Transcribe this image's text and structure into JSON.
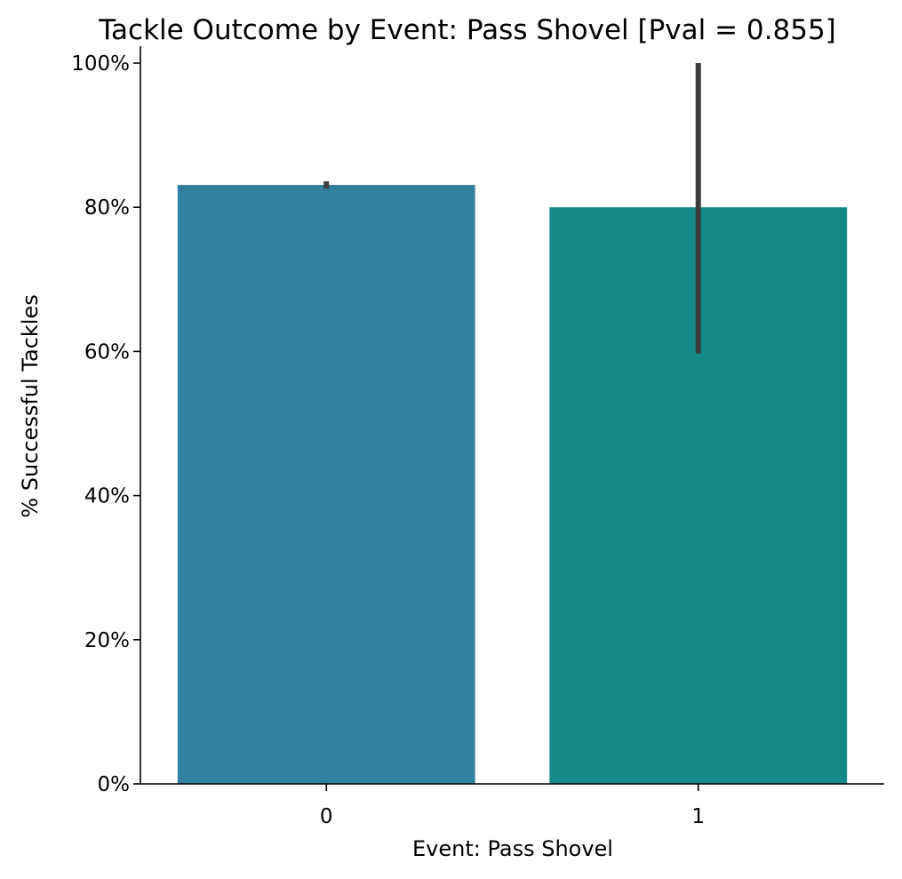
{
  "chart_data": {
    "type": "bar",
    "title": "Tackle Outcome by Event: Pass Shovel [Pval = 0.855]",
    "xlabel": "Event: Pass Shovel",
    "ylabel": "% Successful Tackles",
    "categories": [
      "0",
      "1"
    ],
    "values": [
      0.831,
      0.8
    ],
    "error_bars": [
      [
        0.826,
        0.836
      ],
      [
        0.597,
        1.0
      ]
    ],
    "colors": [
      "#32809f",
      "#168a88"
    ],
    "error_bar_color": "#3d3d3d",
    "ylim": [
      0,
      1.0
    ],
    "yticks": [
      0,
      0.2,
      0.4,
      0.6,
      0.8,
      1.0
    ],
    "ytick_labels": [
      "0%",
      "20%",
      "40%",
      "60%",
      "80%",
      "100%"
    ],
    "grid": false,
    "legend": "none"
  }
}
